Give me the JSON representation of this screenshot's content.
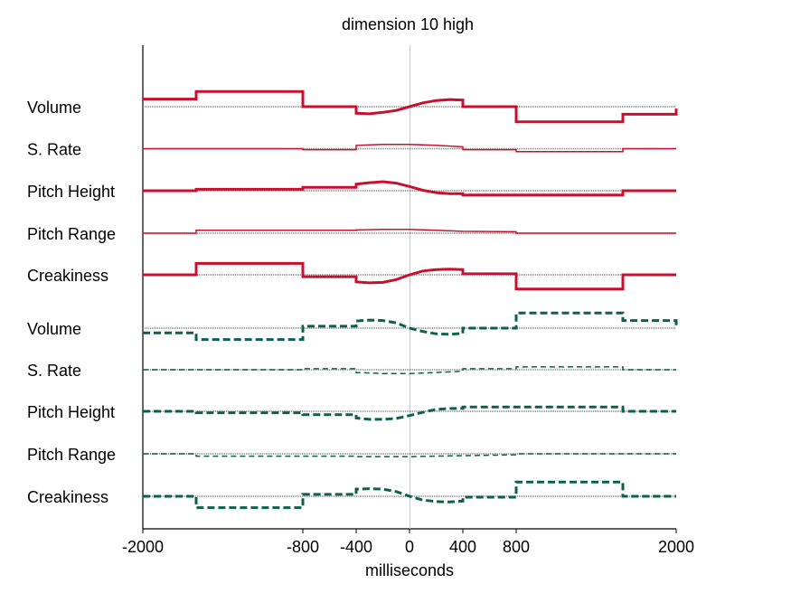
{
  "chart_data": {
    "type": "line",
    "title": "dimension 10 high",
    "xlabel": "milliseconds",
    "ylabel": "",
    "xlim": [
      -2000,
      2000
    ],
    "xticks": [
      "-2000",
      "-800",
      "-400",
      "0",
      "400",
      "800",
      "2000"
    ],
    "xtick_values": [
      -2000,
      -800,
      -400,
      0,
      400,
      800,
      2000
    ],
    "grid": false,
    "colors": {
      "red": "#c8102e",
      "green": "#0b6149",
      "baseline": "#808080",
      "centerline": "#c8c8c8",
      "axis": "#000000"
    },
    "groups": [
      {
        "color": "red",
        "dash": false,
        "rows": [
          {
            "label": "Volume",
            "width": "thick",
            "points": [
              [
                -2000,
                0.8
              ],
              [
                -1600,
                0.8
              ],
              [
                -1600,
                1.6
              ],
              [
                -800,
                1.6
              ],
              [
                -800,
                0
              ],
              [
                -400,
                0
              ],
              [
                -400,
                -0.7
              ],
              [
                -300,
                -0.75
              ],
              [
                -200,
                -0.6
              ],
              [
                -100,
                -0.4
              ],
              [
                0,
                0
              ],
              [
                100,
                0.4
              ],
              [
                200,
                0.65
              ],
              [
                300,
                0.75
              ],
              [
                400,
                0.7
              ],
              [
                400,
                0
              ],
              [
                800,
                0
              ],
              [
                800,
                -1.6
              ],
              [
                1600,
                -1.6
              ],
              [
                1600,
                -0.8
              ],
              [
                2000,
                -0.8
              ],
              [
                2000,
                -0.2
              ]
            ]
          },
          {
            "label": "S. Rate",
            "width": "thin",
            "points": [
              [
                -2000,
                0
              ],
              [
                -800,
                0
              ],
              [
                -800,
                -0.1
              ],
              [
                -400,
                -0.1
              ],
              [
                -400,
                0.35
              ],
              [
                -200,
                0.45
              ],
              [
                0,
                0.45
              ],
              [
                200,
                0.35
              ],
              [
                400,
                0.2
              ],
              [
                400,
                -0.1
              ],
              [
                800,
                -0.1
              ],
              [
                800,
                -0.3
              ],
              [
                1600,
                -0.3
              ],
              [
                1600,
                0
              ],
              [
                2000,
                0
              ]
            ]
          },
          {
            "label": "Pitch Height",
            "width": "thick",
            "points": [
              [
                -2000,
                0
              ],
              [
                -1600,
                0
              ],
              [
                -1600,
                0.15
              ],
              [
                -800,
                0.15
              ],
              [
                -800,
                0.35
              ],
              [
                -400,
                0.35
              ],
              [
                -400,
                0.7
              ],
              [
                -300,
                0.85
              ],
              [
                -200,
                0.95
              ],
              [
                -100,
                0.8
              ],
              [
                0,
                0.45
              ],
              [
                100,
                0.05
              ],
              [
                200,
                -0.2
              ],
              [
                300,
                -0.3
              ],
              [
                400,
                -0.3
              ],
              [
                400,
                -0.45
              ],
              [
                800,
                -0.45
              ],
              [
                1600,
                -0.45
              ],
              [
                1600,
                0
              ],
              [
                2000,
                0
              ]
            ]
          },
          {
            "label": "Pitch Range",
            "width": "thin",
            "points": [
              [
                -2000,
                0
              ],
              [
                -1600,
                0
              ],
              [
                -1600,
                0.3
              ],
              [
                -800,
                0.3
              ],
              [
                -400,
                0.3
              ],
              [
                -400,
                0.35
              ],
              [
                -200,
                0.4
              ],
              [
                0,
                0.4
              ],
              [
                200,
                0.3
              ],
              [
                400,
                0.2
              ],
              [
                800,
                0.15
              ],
              [
                800,
                0
              ],
              [
                2000,
                0
              ]
            ]
          },
          {
            "label": "Creakiness",
            "width": "thick",
            "points": [
              [
                -2000,
                0
              ],
              [
                -1600,
                0
              ],
              [
                -1600,
                1.2
              ],
              [
                -800,
                1.2
              ],
              [
                -800,
                -0.2
              ],
              [
                -400,
                -0.2
              ],
              [
                -400,
                -0.75
              ],
              [
                -300,
                -0.85
              ],
              [
                -200,
                -0.8
              ],
              [
                -100,
                -0.5
              ],
              [
                0,
                0
              ],
              [
                100,
                0.4
              ],
              [
                200,
                0.55
              ],
              [
                300,
                0.6
              ],
              [
                400,
                0.55
              ],
              [
                400,
                0.1
              ],
              [
                800,
                0.1
              ],
              [
                800,
                -1.5
              ],
              [
                1600,
                -1.5
              ],
              [
                1600,
                0
              ],
              [
                2000,
                0
              ]
            ]
          }
        ]
      },
      {
        "color": "green",
        "dash": true,
        "rows": [
          {
            "label": "Volume",
            "width": "thick",
            "points": [
              [
                -2000,
                -0.5
              ],
              [
                -1600,
                -0.5
              ],
              [
                -1600,
                -1.2
              ],
              [
                -800,
                -1.2
              ],
              [
                -800,
                0.2
              ],
              [
                -400,
                0.2
              ],
              [
                -400,
                0.75
              ],
              [
                -300,
                0.85
              ],
              [
                -200,
                0.8
              ],
              [
                -100,
                0.55
              ],
              [
                0,
                0
              ],
              [
                100,
                -0.35
              ],
              [
                200,
                -0.6
              ],
              [
                300,
                -0.65
              ],
              [
                400,
                -0.55
              ],
              [
                400,
                0
              ],
              [
                800,
                0
              ],
              [
                800,
                1.6
              ],
              [
                1600,
                1.6
              ],
              [
                1600,
                0.8
              ],
              [
                2000,
                0.8
              ],
              [
                2000,
                0.2
              ]
            ]
          },
          {
            "label": "S. Rate",
            "width": "thin",
            "points": [
              [
                -2000,
                0
              ],
              [
                -800,
                0
              ],
              [
                -800,
                0.1
              ],
              [
                -400,
                0.1
              ],
              [
                -400,
                -0.3
              ],
              [
                -200,
                -0.4
              ],
              [
                0,
                -0.4
              ],
              [
                200,
                -0.3
              ],
              [
                400,
                -0.15
              ],
              [
                400,
                0.1
              ],
              [
                800,
                0.1
              ],
              [
                800,
                0.3
              ],
              [
                1600,
                0.3
              ],
              [
                1600,
                0
              ],
              [
                2000,
                0
              ]
            ]
          },
          {
            "label": "Pitch Height",
            "width": "thick",
            "points": [
              [
                -2000,
                0
              ],
              [
                -1600,
                0
              ],
              [
                -1600,
                -0.15
              ],
              [
                -800,
                -0.15
              ],
              [
                -800,
                -0.35
              ],
              [
                -400,
                -0.35
              ],
              [
                -400,
                -0.7
              ],
              [
                -300,
                -0.85
              ],
              [
                -200,
                -0.85
              ],
              [
                -100,
                -0.75
              ],
              [
                0,
                -0.45
              ],
              [
                100,
                -0.1
              ],
              [
                200,
                0.2
              ],
              [
                300,
                0.3
              ],
              [
                400,
                0.3
              ],
              [
                400,
                0.45
              ],
              [
                800,
                0.45
              ],
              [
                1600,
                0.45
              ],
              [
                1600,
                0
              ],
              [
                2000,
                0
              ]
            ]
          },
          {
            "label": "Pitch Range",
            "width": "thin",
            "points": [
              [
                -2000,
                0
              ],
              [
                -1600,
                0
              ],
              [
                -1600,
                -0.25
              ],
              [
                -800,
                -0.25
              ],
              [
                -400,
                -0.25
              ],
              [
                -400,
                -0.3
              ],
              [
                0,
                -0.3
              ],
              [
                400,
                -0.2
              ],
              [
                800,
                -0.1
              ],
              [
                800,
                0
              ],
              [
                2000,
                0
              ]
            ]
          },
          {
            "label": "Creakiness",
            "width": "thick",
            "points": [
              [
                -2000,
                0
              ],
              [
                -1600,
                0
              ],
              [
                -1600,
                -1.2
              ],
              [
                -800,
                -1.2
              ],
              [
                -800,
                0.2
              ],
              [
                -400,
                0.2
              ],
              [
                -400,
                0.75
              ],
              [
                -300,
                0.8
              ],
              [
                -200,
                0.75
              ],
              [
                -100,
                0.5
              ],
              [
                0,
                0
              ],
              [
                100,
                -0.4
              ],
              [
                200,
                -0.55
              ],
              [
                300,
                -0.6
              ],
              [
                400,
                -0.5
              ],
              [
                400,
                -0.1
              ],
              [
                800,
                -0.1
              ],
              [
                800,
                1.5
              ],
              [
                1600,
                1.5
              ],
              [
                1600,
                0
              ],
              [
                2000,
                0
              ]
            ]
          }
        ]
      }
    ]
  }
}
